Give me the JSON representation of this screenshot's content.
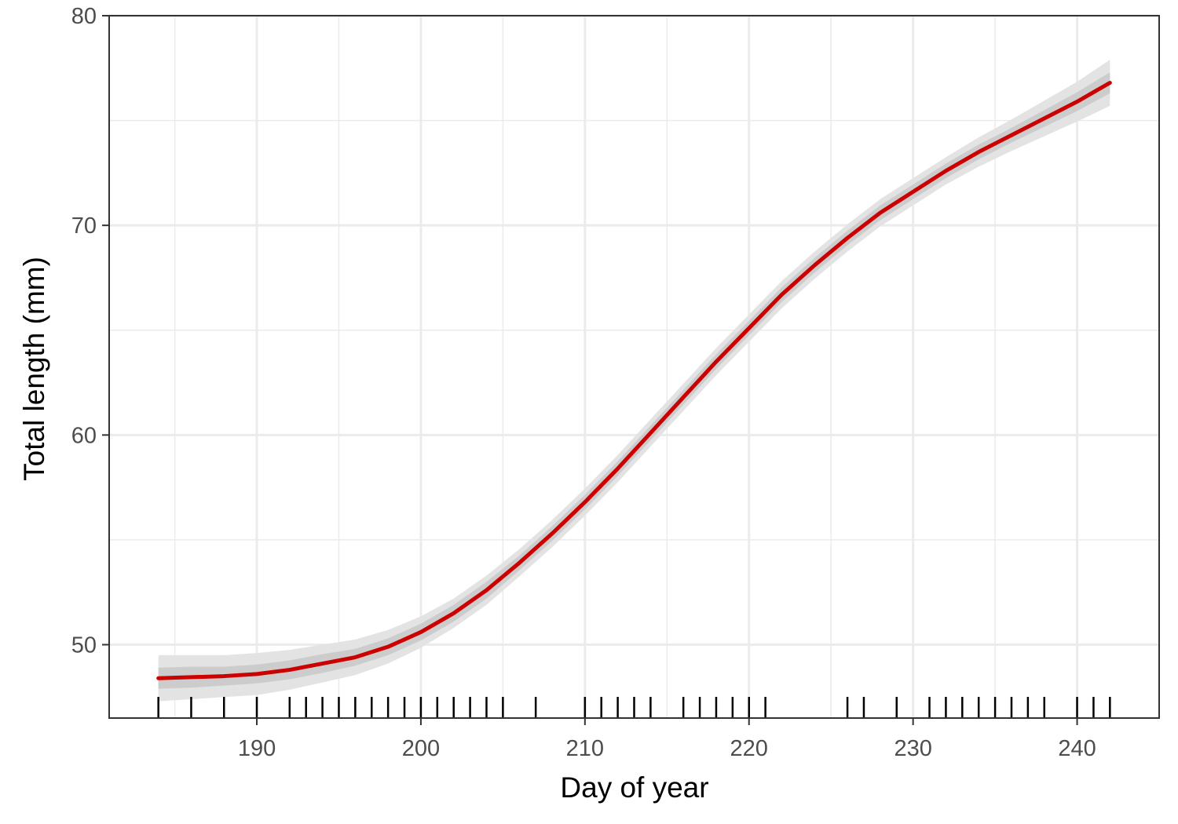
{
  "chart_data": {
    "type": "line",
    "title": "",
    "xlabel": "Day of year",
    "ylabel": "Total length (mm)",
    "xlim": [
      181,
      245
    ],
    "ylim": [
      46.5,
      80
    ],
    "x_ticks": [
      190,
      200,
      210,
      220,
      230,
      240
    ],
    "y_ticks": [
      50,
      60,
      70,
      80
    ],
    "grid": true,
    "legend": "none",
    "colors": {
      "line": "#cc0000",
      "band_outer": "#e3e3e3",
      "band_inner": "#cccccc",
      "grid": "#ebebeb",
      "rug": "#000000",
      "panel_border": "#333333"
    },
    "series": [
      {
        "x": [
          184,
          186,
          188,
          190,
          192,
          194,
          196,
          198,
          200,
          202,
          204,
          206,
          208,
          210,
          212,
          214,
          216,
          218,
          220,
          222,
          224,
          226,
          228,
          230,
          232,
          234,
          236,
          238,
          240,
          242
        ],
        "y": [
          48.4,
          48.45,
          48.5,
          48.6,
          48.8,
          49.1,
          49.4,
          49.9,
          50.6,
          51.5,
          52.6,
          53.9,
          55.3,
          56.8,
          58.4,
          60.1,
          61.8,
          63.5,
          65.1,
          66.7,
          68.1,
          69.4,
          70.6,
          71.6,
          72.6,
          73.5,
          74.3,
          75.1,
          75.9,
          76.8
        ],
        "band_inner": [
          0.5,
          0.5,
          0.45,
          0.45,
          0.45,
          0.45,
          0.4,
          0.4,
          0.4,
          0.4,
          0.4,
          0.35,
          0.35,
          0.35,
          0.35,
          0.35,
          0.35,
          0.35,
          0.35,
          0.35,
          0.35,
          0.35,
          0.35,
          0.35,
          0.35,
          0.35,
          0.35,
          0.4,
          0.45,
          0.5
        ],
        "band_outer": [
          1.1,
          1.05,
          1.0,
          1.0,
          0.95,
          0.9,
          0.85,
          0.8,
          0.75,
          0.7,
          0.7,
          0.65,
          0.65,
          0.65,
          0.65,
          0.65,
          0.65,
          0.65,
          0.65,
          0.65,
          0.65,
          0.65,
          0.65,
          0.65,
          0.65,
          0.7,
          0.75,
          0.85,
          0.95,
          1.1
        ]
      }
    ],
    "rug_x": [
      184,
      186,
      188,
      190,
      192,
      193,
      194,
      195,
      196,
      197,
      198,
      199,
      200,
      201,
      202,
      203,
      204,
      205,
      207,
      210,
      211,
      212,
      213,
      214,
      216,
      217,
      218,
      219,
      220,
      221,
      226,
      227,
      229,
      231,
      232,
      233,
      234,
      235,
      236,
      237,
      238,
      240,
      241,
      242
    ]
  }
}
